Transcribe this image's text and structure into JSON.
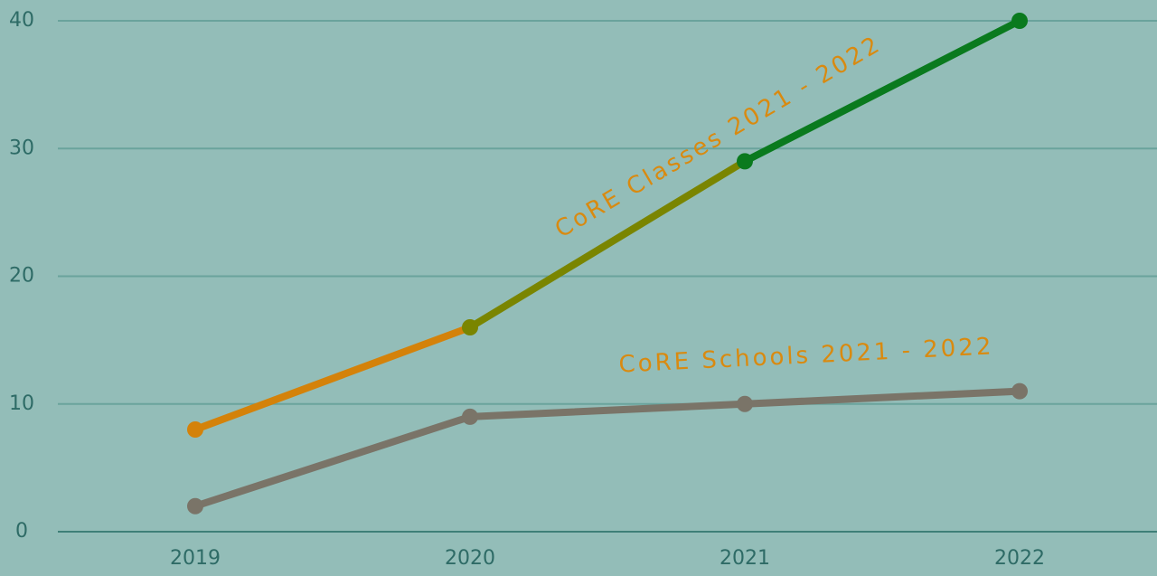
{
  "chart_data": {
    "type": "line",
    "categories": [
      "2019",
      "2020",
      "2021",
      "2022"
    ],
    "series": [
      {
        "name": "CoRE Classes 2021 - 2022",
        "color": "#0a7a1e",
        "point_colors": [
          "#d4820a",
          "#7a8500",
          "#0a7a1e",
          "#0a7a1e"
        ],
        "values": [
          8,
          16,
          29,
          40
        ]
      },
      {
        "name": "CoRE Schools 2021 - 2022",
        "color": "#7a7468",
        "values": [
          2,
          9,
          10,
          11
        ]
      }
    ],
    "ylim": [
      0,
      40
    ],
    "yticks": [
      0,
      10,
      20,
      30,
      40
    ],
    "grid": true
  }
}
